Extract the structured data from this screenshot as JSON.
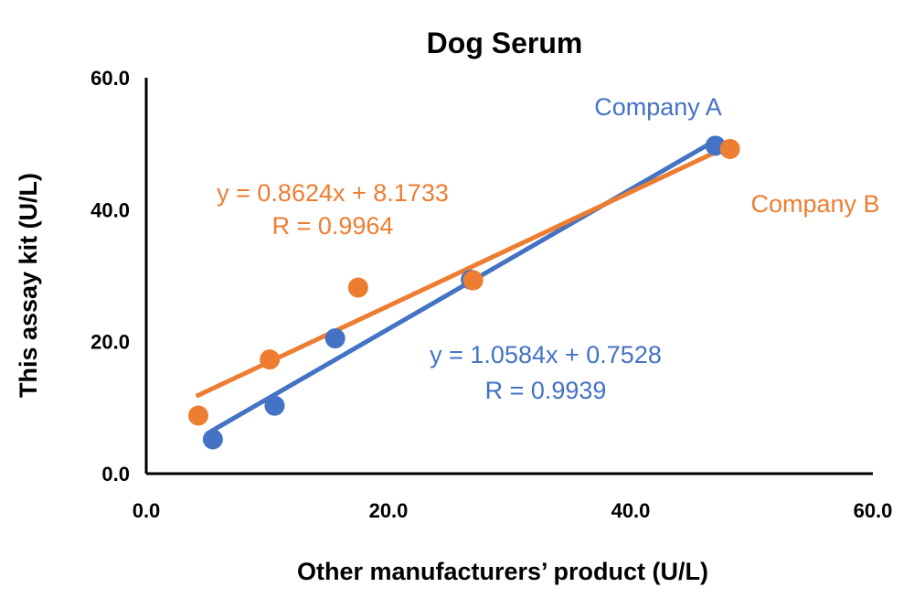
{
  "chart_data": {
    "type": "scatter",
    "title": "Dog Serum",
    "xlabel": "Other manufacturers’ product (U/L)",
    "ylabel": "This assay kit (U/L)",
    "xlim": [
      0,
      60
    ],
    "ylim": [
      0,
      60
    ],
    "x_ticks": [
      "0.0",
      "20.0",
      "40.0",
      "60.0"
    ],
    "y_ticks": [
      "0.0",
      "20.0",
      "40.0",
      "60.0"
    ],
    "grid": false,
    "series": [
      {
        "name": "Company A",
        "color": "#4472C4",
        "points": [
          {
            "x": 5.5,
            "y": 5.2
          },
          {
            "x": 10.6,
            "y": 10.3
          },
          {
            "x": 15.6,
            "y": 20.5
          },
          {
            "x": 26.8,
            "y": 29.4
          },
          {
            "x": 47.0,
            "y": 49.7
          }
        ],
        "trendline": {
          "slope": 1.0584,
          "intercept": 0.7528,
          "x_range": [
            5.5,
            47.0
          ]
        },
        "equation": "y = 1.0584x + 0.7528",
        "r_label": "R = 0.9939"
      },
      {
        "name": "Company B",
        "color": "#ED7D31",
        "points": [
          {
            "x": 4.3,
            "y": 8.8
          },
          {
            "x": 10.2,
            "y": 17.3
          },
          {
            "x": 17.5,
            "y": 28.2
          },
          {
            "x": 27.0,
            "y": 29.3
          },
          {
            "x": 48.2,
            "y": 49.2
          }
        ],
        "trendline": {
          "slope": 0.8624,
          "intercept": 8.1733,
          "x_range": [
            4.3,
            48.2
          ]
        },
        "equation": "y = 0.8624x + 8.1733",
        "r_label": "R = 0.9964"
      }
    ]
  }
}
